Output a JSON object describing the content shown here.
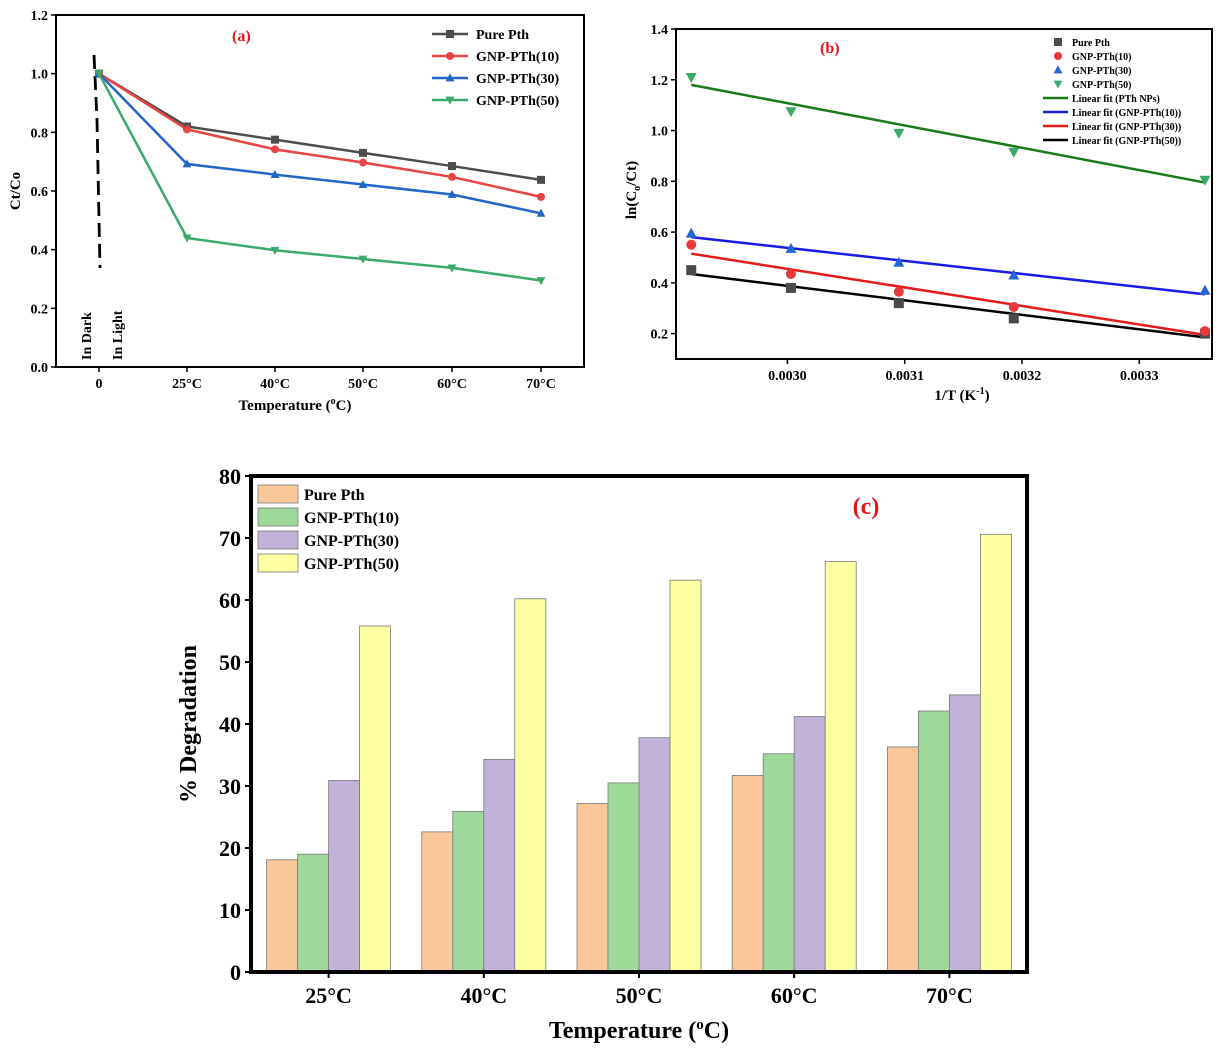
{
  "chart_data": [
    {
      "panel": "(a)",
      "type": "line",
      "xlabel_pre": "Temperature (",
      "xlabel_sup": "o",
      "xlabel_post": "C)",
      "ylabel": "Ct/Co",
      "categories": [
        "0",
        "25°C",
        "40°C",
        "50°C",
        "60°C",
        "70°C"
      ],
      "ylim": [
        0,
        1.2
      ],
      "yticks": [
        "0.0",
        "0.2",
        "0.4",
        "0.6",
        "0.8",
        "1.0",
        "1.2"
      ],
      "annotations": [
        "In Dark",
        "In Light"
      ],
      "legend_position": "top-right",
      "series": [
        {
          "name": "Pure Pth",
          "color": "#4d4d4d",
          "marker": "square",
          "values": [
            1.0,
            0.82,
            0.775,
            0.73,
            0.685,
            0.638
          ]
        },
        {
          "name": "GNP-PTh(10)",
          "color": "#e84545",
          "marker": "circle",
          "values": [
            1.0,
            0.81,
            0.742,
            0.697,
            0.648,
            0.58
          ]
        },
        {
          "name": "GNP-PTh(30)",
          "color": "#2366c8",
          "marker": "triangle-up",
          "values": [
            1.0,
            0.692,
            0.656,
            0.622,
            0.588,
            0.524
          ]
        },
        {
          "name": "GNP-PTh(50)",
          "color": "#3aaa6a",
          "marker": "triangle-down",
          "values": [
            1.0,
            0.44,
            0.398,
            0.368,
            0.338,
            0.295
          ]
        }
      ]
    },
    {
      "panel": "(b)",
      "type": "scatter",
      "xlabel_pre": "1/T (K",
      "xlabel_sup": "-1",
      "xlabel_post": ")",
      "ylabel_pre": "ln(C",
      "ylabel_sub": "o",
      "ylabel_post": "/Ct)",
      "xlim": [
        0.002905,
        0.003362
      ],
      "xticks": [
        "0.0030",
        "0.0031",
        "0.0032",
        "0.0033"
      ],
      "ylim": [
        0.1,
        1.4
      ],
      "yticks": [
        "0.2",
        "0.4",
        "0.6",
        "0.8",
        "1.0",
        "1.2",
        "1.4"
      ],
      "legend_position": "top-right",
      "x": [
        0.002918,
        0.003003,
        0.003095,
        0.003193,
        0.003356
      ],
      "series": [
        {
          "name": "Pure Pth",
          "color": "#4a4a4a",
          "marker": "square",
          "values": [
            0.45,
            0.38,
            0.32,
            0.26,
            0.2
          ]
        },
        {
          "name": "GNP-PTh(10)",
          "color": "#e83a3a",
          "marker": "circle",
          "values": [
            0.55,
            0.435,
            0.365,
            0.305,
            0.21
          ]
        },
        {
          "name": "GNP-PTh(30)",
          "color": "#2266d4",
          "marker": "triangle-up",
          "values": [
            0.595,
            0.535,
            0.48,
            0.43,
            0.37
          ]
        },
        {
          "name": "GNP-PTh(50)",
          "color": "#3aaa6a",
          "marker": "triangle-down",
          "values": [
            1.21,
            1.075,
            0.99,
            0.915,
            0.805
          ]
        }
      ],
      "fits": [
        {
          "name": "Linear fit (PTh NPs)",
          "color": "#1a7a1a",
          "y_start": 1.18,
          "y_end": 0.795
        },
        {
          "name": "Linear fit (GNP-PTh(10))",
          "color": "#1a1ae6",
          "y_start": 0.58,
          "y_end": 0.355
        },
        {
          "name": "Linear fit (GNP-PTh(30))",
          "color": "#e61a1a",
          "y_start": 0.515,
          "y_end": 0.195
        },
        {
          "name": "Linear fit (GNP-PTh(50))",
          "color": "#000000",
          "y_start": 0.435,
          "y_end": 0.185
        }
      ]
    },
    {
      "panel": "(c)",
      "type": "bar",
      "xlabel_pre": "Temperature (",
      "xlabel_sup": "o",
      "xlabel_post": "C)",
      "ylabel": "% Degradation",
      "categories": [
        "25°C",
        "40°C",
        "50°C",
        "60°C",
        "70°C"
      ],
      "ylim": [
        0,
        80
      ],
      "yticks": [
        "0",
        "10",
        "20",
        "30",
        "40",
        "50",
        "60",
        "70",
        "80"
      ],
      "legend_position": "top-left",
      "series": [
        {
          "name": "Pure Pth",
          "color": "#f9c79a",
          "values": [
            18.1,
            22.6,
            27.2,
            31.7,
            36.3
          ]
        },
        {
          "name": "GNP-PTh(10)",
          "color": "#9ed99b",
          "values": [
            19.0,
            25.9,
            30.5,
            35.2,
            42.1
          ]
        },
        {
          "name": "GNP-PTh(30)",
          "color": "#c2b1d8",
          "values": [
            30.9,
            34.3,
            37.8,
            41.2,
            44.7
          ]
        },
        {
          "name": "GNP-PTh(50)",
          "color": "#fefea3",
          "values": [
            55.8,
            60.2,
            63.2,
            66.2,
            70.6
          ]
        }
      ]
    }
  ],
  "colors": {
    "panel_label": "#e8141c",
    "axis": "#000000"
  }
}
